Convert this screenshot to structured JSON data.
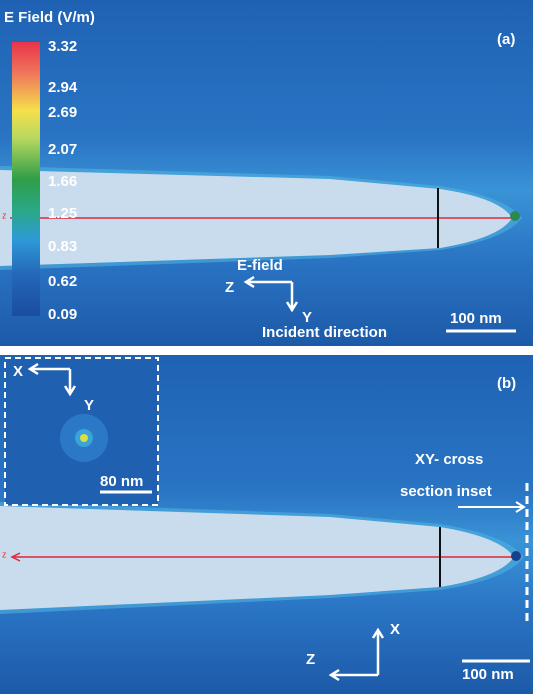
{
  "panel_a": {
    "label": "(a)",
    "line_label": "z",
    "colorbar": {
      "title": "E Field (V/m)",
      "ticks": [
        "3.32",
        "2.94",
        "2.69",
        "2.07",
        "1.66",
        "1.25",
        "0.83",
        "0.62",
        "0.09"
      ]
    },
    "axis_labels": {
      "e_field": "E-field",
      "z": "Z",
      "y": "Y",
      "incident": "Incident direction"
    },
    "scale_bar": "100 nm"
  },
  "panel_b": {
    "label": "(b)",
    "line_label": "z",
    "inset": {
      "x": "X",
      "y": "Y",
      "scale_bar": "80 nm"
    },
    "inset_note": [
      "XY- cross",
      "section inset"
    ],
    "axis_labels": {
      "x": "X",
      "z": "Z"
    },
    "scale_bar": "100 nm"
  }
}
